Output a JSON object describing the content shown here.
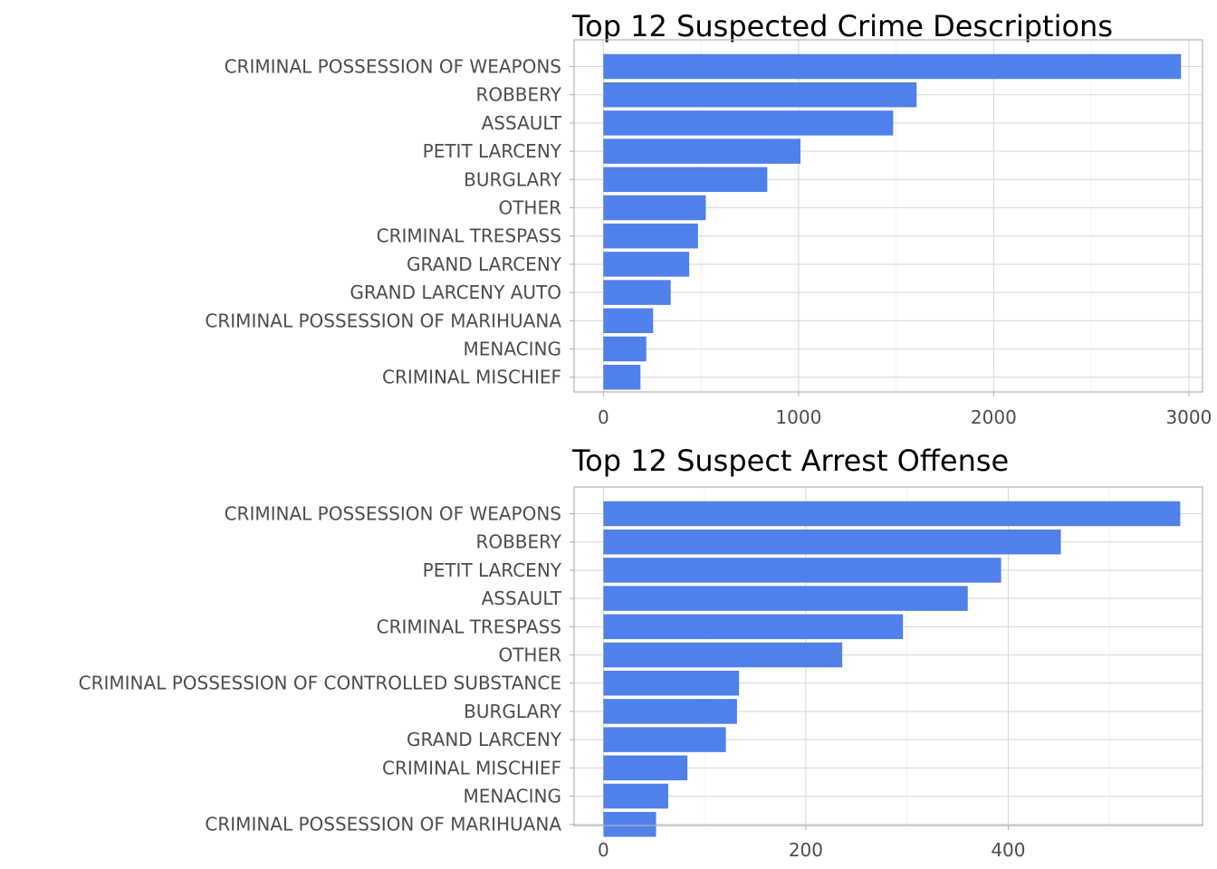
{
  "chart_data": [
    {
      "type": "bar",
      "orientation": "horizontal",
      "title": "Top 12 Suspected Crime Descriptions",
      "xlabel": "",
      "ylabel": "",
      "color": "#5080E9",
      "categories": [
        "CRIMINAL POSSESSION OF WEAPONS",
        "ROBBERY",
        "ASSAULT",
        "PETIT LARCENY",
        "BURGLARY",
        "OTHER",
        "CRIMINAL TRESPASS",
        "GRAND LARCENY",
        "GRAND LARCENY AUTO",
        "CRIMINAL POSSESSION OF MARIHUANA",
        "MENACING",
        "CRIMINAL MISCHIEF"
      ],
      "values": [
        2960,
        1605,
        1485,
        1010,
        840,
        525,
        485,
        440,
        345,
        255,
        220,
        190
      ],
      "xlim": [
        -150,
        3070
      ],
      "xticks": [
        0,
        1000,
        2000,
        3000
      ],
      "xtick_labels": [
        "0",
        "1000",
        "2000",
        "3000"
      ],
      "grid": true
    },
    {
      "type": "bar",
      "orientation": "horizontal",
      "title": "Top 12 Suspect Arrest Offense",
      "xlabel": "",
      "ylabel": "",
      "color": "#5080E9",
      "categories": [
        "CRIMINAL POSSESSION OF WEAPONS",
        "ROBBERY",
        "PETIT LARCENY",
        "ASSAULT",
        "CRIMINAL TRESPASS",
        "OTHER",
        "CRIMINAL POSSESSION OF CONTROLLED SUBSTANCE",
        "BURGLARY",
        "GRAND LARCENY",
        "CRIMINAL MISCHIEF",
        "MENACING",
        "CRIMINAL POSSESSION OF MARIHUANA"
      ],
      "values": [
        570,
        452,
        393,
        360,
        296,
        236,
        134,
        132,
        121,
        83,
        64,
        52
      ],
      "xlim": [
        -29,
        592
      ],
      "xticks": [
        0,
        200,
        400
      ],
      "xtick_labels": [
        "0",
        "200",
        "400"
      ],
      "grid": true
    }
  ]
}
